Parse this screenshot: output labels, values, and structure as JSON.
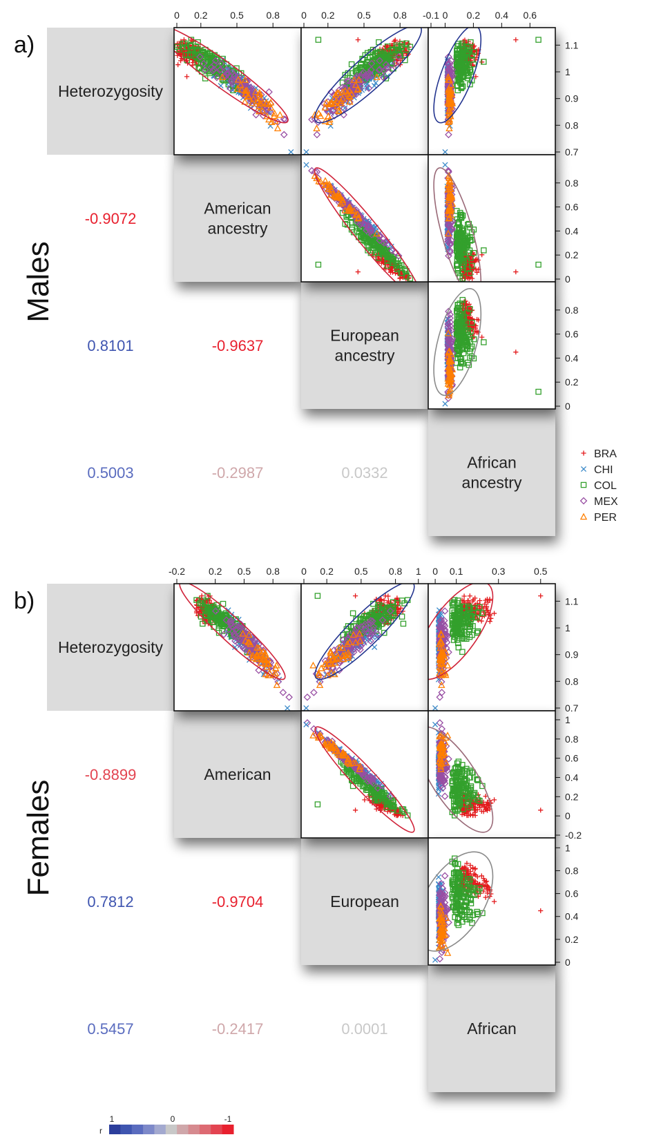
{
  "chart_data": [
    {
      "type": "scatter",
      "panel_label": "a)",
      "group_label": "Males",
      "variables": [
        "Heterozygosity",
        "American\nancestry",
        "European\nancestry",
        "African\nancestry"
      ],
      "axes": {
        "heterozygosity": {
          "range": [
            0.7,
            1.15
          ],
          "ticks": [
            0.7,
            0.8,
            0.9,
            1,
            1.1
          ],
          "tick_labels": [
            "0.7",
            "0.8",
            "0.9",
            "1",
            "1.1"
          ]
        },
        "american": {
          "range": [
            0,
            1
          ],
          "ticks": [
            0,
            0.2,
            0.5,
            0.8
          ],
          "tick_labels": [
            "0",
            "0.2",
            "0.5",
            "0.8"
          ],
          "right_ticks": [
            0,
            0.2,
            0.4,
            0.6,
            0.8
          ],
          "right_tick_labels": [
            "0",
            "0.2",
            "0.4",
            "0.6",
            "0.8"
          ]
        },
        "european": {
          "range": [
            0,
            1
          ],
          "ticks": [
            0,
            0.2,
            0.5,
            0.8
          ],
          "tick_labels": [
            "0",
            "0.2",
            "0.5",
            "0.8"
          ],
          "right_ticks": [
            0,
            0.2,
            0.4,
            0.6,
            0.8
          ],
          "right_tick_labels": [
            "0",
            "0.2",
            "0.4",
            "0.6",
            "0.8"
          ]
        },
        "african": {
          "range": [
            -0.1,
            0.75
          ],
          "ticks": [
            -0.1,
            0,
            0.2,
            0.4,
            0.6
          ],
          "tick_labels": [
            "-0.1",
            "0",
            "0.2",
            "0.4",
            "0.6"
          ]
        }
      },
      "correlations": {
        "heterozygosity_american": "-0.9072",
        "heterozygosity_european": "0.8101",
        "heterozygosity_african": "0.5003",
        "american_european": "-0.9637",
        "american_african": "-0.2987",
        "european_african": "0.0332"
      }
    },
    {
      "type": "scatter",
      "panel_label": "b)",
      "group_label": "Females",
      "variables": [
        "Heterozygosity",
        "American",
        "European",
        "African"
      ],
      "axes": {
        "heterozygosity": {
          "range": [
            0.7,
            1.15
          ],
          "ticks": [
            0.7,
            0.8,
            0.9,
            1,
            1.1
          ],
          "tick_labels": [
            "0.7",
            "0.8",
            "0.9",
            "1",
            "1.1"
          ]
        },
        "american": {
          "range": [
            -0.2,
            1.05
          ],
          "ticks": [
            -0.2,
            0.2,
            0.5,
            0.8
          ],
          "tick_labels": [
            "-0.2",
            "0.2",
            "0.5",
            "0.8"
          ],
          "right_ticks": [
            -0.2,
            0,
            0.2,
            0.4,
            0.6,
            0.8,
            1
          ],
          "right_tick_labels": [
            "-0.2",
            "0",
            "0.2",
            "0.4",
            "0.6",
            "0.8",
            "1"
          ]
        },
        "european": {
          "range": [
            0,
            1.05
          ],
          "ticks": [
            0,
            0.2,
            0.5,
            0.8,
            1
          ],
          "tick_labels": [
            "0",
            "0.2",
            "0.5",
            "0.8",
            "1"
          ],
          "right_ticks": [
            0,
            0.2,
            0.4,
            0.6,
            0.8,
            1
          ],
          "right_tick_labels": [
            "0",
            "0.2",
            "0.4",
            "0.6",
            "0.8",
            "1"
          ]
        },
        "african": {
          "range": [
            -0.02,
            0.55
          ],
          "ticks": [
            0,
            0.1,
            0.3,
            0.5
          ],
          "tick_labels": [
            "0",
            "0.1",
            "0.3",
            "0.5"
          ]
        }
      },
      "correlations": {
        "heterozygosity_american": "-0.8899",
        "heterozygosity_european": "0.7812",
        "heterozygosity_african": "0.5457",
        "american_european": "-0.9704",
        "american_african": "-0.2417",
        "european_african": "0.0001"
      }
    }
  ],
  "legend": [
    {
      "name": "BRA",
      "marker": "plus",
      "color": "#e31a1c"
    },
    {
      "name": "CHI",
      "marker": "cross",
      "color": "#3a89c9"
    },
    {
      "name": "COL",
      "marker": "square",
      "color": "#33a02c"
    },
    {
      "name": "MEX",
      "marker": "diamond",
      "color": "#984ea3"
    },
    {
      "name": "PER",
      "marker": "triangle",
      "color": "#ff7f00"
    }
  ],
  "colorbar": {
    "label": "r",
    "tick_labels": [
      "1",
      "0",
      "-1"
    ],
    "colors": [
      "#2c3e9c",
      "#3f55b0",
      "#5a6cbf",
      "#7d89c9",
      "#a3a9cf",
      "#c8c8c8",
      "#cfa7aa",
      "#d68a8f",
      "#dd6a72",
      "#e34451",
      "#e8202e"
    ]
  },
  "colors": {
    "panel_gray": "#dcdcdc",
    "ellipse_negative": "#d0243a",
    "ellipse_positive": "#23348f",
    "ellipse_neutral": "#8a8a8a",
    "ellipse_mixed": "#9a6a78"
  }
}
